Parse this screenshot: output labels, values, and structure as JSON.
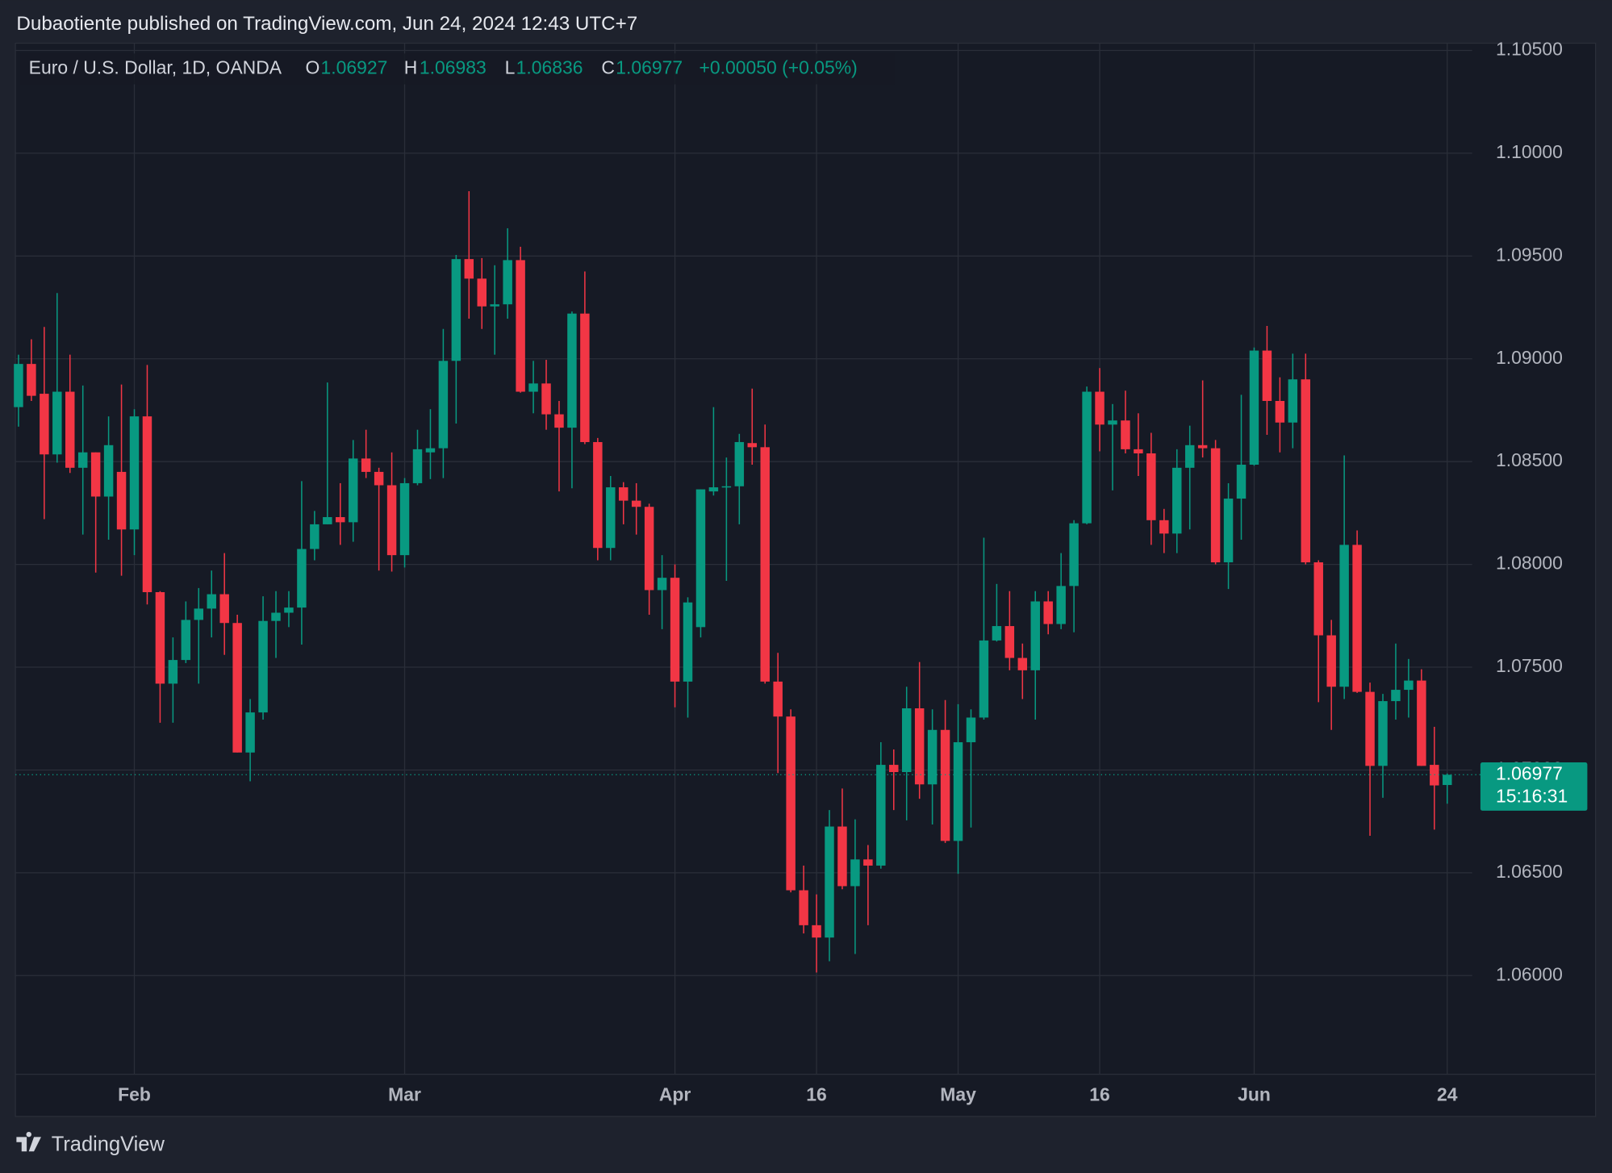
{
  "published": "Dubaotiente published on TradingView.com, Jun 24, 2024 12:43 UTC+7",
  "footer": {
    "brand": "TradingView"
  },
  "chart_data": {
    "type": "candlestick",
    "symbol": "Euro / U.S. Dollar, 1D, OANDA",
    "ohlc_labels": [
      "O",
      "H",
      "L",
      "C"
    ],
    "change": "+0.00050 (+0.05%)",
    "countdown": "15:16:31",
    "up_color": "#089981",
    "down_color": "#f23645",
    "grid": true,
    "categories": [
      null,
      null,
      null,
      null,
      null,
      null,
      null,
      null,
      null,
      "Feb",
      null,
      null,
      null,
      null,
      null,
      null,
      null,
      null,
      null,
      null,
      null,
      null,
      null,
      null,
      null,
      null,
      null,
      null,
      null,
      null,
      "Mar",
      null,
      null,
      null,
      null,
      null,
      null,
      null,
      null,
      null,
      null,
      null,
      null,
      null,
      null,
      null,
      null,
      null,
      null,
      null,
      null,
      "Apr",
      null,
      null,
      null,
      null,
      null,
      null,
      null,
      null,
      null,
      null,
      "16",
      null,
      null,
      null,
      null,
      null,
      null,
      null,
      null,
      null,
      null,
      "May",
      null,
      null,
      null,
      null,
      null,
      null,
      null,
      null,
      null,
      null,
      "16",
      null,
      null,
      null,
      null,
      null,
      null,
      null,
      null,
      null,
      null,
      null,
      "Jun",
      null,
      null,
      null,
      null,
      null,
      null,
      null,
      null,
      null,
      null,
      null,
      null,
      null,
      null,
      "24"
    ],
    "open": [
      1.08765,
      1.08975,
      1.0883,
      1.08535,
      1.0884,
      1.0847,
      1.08545,
      1.0833,
      1.0845,
      1.0817,
      1.0872,
      1.07865,
      1.0742,
      1.07535,
      1.0773,
      1.07785,
      1.07855,
      1.07715,
      1.07085,
      1.0728,
      1.07725,
      1.07765,
      1.0779,
      1.08075,
      1.08195,
      1.0823,
      1.08205,
      1.08515,
      1.0845,
      1.08385,
      1.08045,
      1.08395,
      1.08545,
      1.08565,
      1.0899,
      1.09485,
      1.0939,
      1.09255,
      1.09265,
      1.0948,
      1.0884,
      1.0888,
      1.0873,
      1.08665,
      1.0922,
      1.08595,
      1.0808,
      1.08375,
      1.0831,
      1.0828,
      1.07875,
      1.07935,
      1.0743,
      1.07695,
      1.08355,
      1.08375,
      1.0838,
      1.0859,
      1.0857,
      1.0743,
      1.0726,
      1.06415,
      1.06245,
      1.06185,
      1.06725,
      1.06435,
      1.06565,
      1.06535,
      1.07025,
      1.0699,
      1.073,
      1.0693,
      1.07195,
      1.06655,
      1.07135,
      1.07255,
      1.0763,
      1.077,
      1.07545,
      1.07485,
      1.0782,
      1.0771,
      1.07895,
      1.082,
      1.0884,
      1.0868,
      1.087,
      1.0856,
      1.0854,
      1.08215,
      1.0815,
      1.0847,
      1.0858,
      1.08565,
      1.0801,
      1.0832,
      1.08485,
      1.0904,
      1.08795,
      1.0869,
      1.089,
      1.0801,
      1.07655,
      1.07405,
      1.08095,
      1.0738,
      1.0702,
      1.07335,
      1.0739,
      1.07435,
      1.07025,
      1.06927
    ],
    "high": [
      1.0902,
      1.09095,
      1.09155,
      1.0932,
      1.0902,
      1.0887,
      1.08545,
      1.0872,
      1.08875,
      1.08755,
      1.0897,
      1.0787,
      1.07645,
      1.0782,
      1.07885,
      1.0797,
      1.08055,
      1.07755,
      1.07345,
      1.07845,
      1.0787,
      1.0787,
      1.08405,
      1.0826,
      1.08885,
      1.08395,
      1.08605,
      1.08655,
      1.0847,
      1.08545,
      1.0842,
      1.08655,
      1.08755,
      1.09145,
      1.09505,
      1.09815,
      1.0949,
      1.09455,
      1.09635,
      1.09545,
      1.0899,
      1.08995,
      1.08795,
      1.0923,
      1.09425,
      1.08615,
      1.0843,
      1.084,
      1.08395,
      1.08295,
      1.08045,
      1.08,
      1.0784,
      1.08365,
      1.08765,
      1.0852,
      1.08635,
      1.08855,
      1.0868,
      1.0757,
      1.07295,
      1.06535,
      1.06395,
      1.06805,
      1.0691,
      1.0676,
      1.06635,
      1.07135,
      1.071,
      1.07405,
      1.07525,
      1.07295,
      1.0734,
      1.0732,
      1.07295,
      1.0813,
      1.07905,
      1.0787,
      1.07615,
      1.0787,
      1.0787,
      1.08055,
      1.08215,
      1.08865,
      1.08955,
      1.0878,
      1.08845,
      1.08735,
      1.0864,
      1.0827,
      1.0856,
      1.08675,
      1.08895,
      1.08605,
      1.08395,
      1.08825,
      1.09055,
      1.0916,
      1.0891,
      1.09025,
      1.09025,
      1.0802,
      1.0773,
      1.0853,
      1.08165,
      1.07425,
      1.0737,
      1.07615,
      1.0754,
      1.0749,
      1.0721,
      1.06983
    ],
    "low": [
      1.0867,
      1.08795,
      1.0822,
      1.08495,
      1.08445,
      1.08145,
      1.0796,
      1.0812,
      1.07945,
      1.08045,
      1.07805,
      1.0723,
      1.0723,
      1.0752,
      1.0742,
      1.07645,
      1.0756,
      1.07085,
      1.06945,
      1.07245,
      1.07545,
      1.07695,
      1.0761,
      1.0802,
      1.08195,
      1.08095,
      1.0811,
      1.0842,
      1.0797,
      1.07965,
      1.07985,
      1.08385,
      1.08415,
      1.0842,
      1.08685,
      1.09195,
      1.09145,
      1.0902,
      1.09195,
      1.08835,
      1.08735,
      1.08655,
      1.08355,
      1.0837,
      1.08585,
      1.0802,
      1.0802,
      1.08195,
      1.08145,
      1.07755,
      1.07685,
      1.07305,
      1.07255,
      1.07645,
      1.08335,
      1.0792,
      1.08195,
      1.08485,
      1.0742,
      1.06985,
      1.06405,
      1.06205,
      1.06015,
      1.0607,
      1.0642,
      1.06105,
      1.06245,
      1.0652,
      1.06805,
      1.06755,
      1.0686,
      1.06735,
      1.06645,
      1.06495,
      1.0672,
      1.07245,
      1.07625,
      1.07485,
      1.07345,
      1.07245,
      1.0766,
      1.07685,
      1.0767,
      1.08195,
      1.0855,
      1.0836,
      1.0854,
      1.0843,
      1.08095,
      1.08055,
      1.08055,
      1.0817,
      1.0852,
      1.08,
      1.0788,
      1.0812,
      1.0848,
      1.0863,
      1.08545,
      1.08565,
      1.08,
      1.0733,
      1.07195,
      1.07345,
      1.07375,
      1.0668,
      1.06865,
      1.07245,
      1.07255,
      1.0702,
      1.0671,
      1.06836
    ],
    "close": [
      1.08975,
      1.0882,
      1.08535,
      1.0884,
      1.0847,
      1.08545,
      1.0833,
      1.0858,
      1.0817,
      1.0872,
      1.07865,
      1.0742,
      1.07535,
      1.0773,
      1.07785,
      1.07855,
      1.07715,
      1.07085,
      1.0728,
      1.07725,
      1.07765,
      1.0779,
      1.08075,
      1.08195,
      1.0823,
      1.08205,
      1.08515,
      1.0845,
      1.08385,
      1.08045,
      1.08395,
      1.0856,
      1.08565,
      1.0899,
      1.09485,
      1.0939,
      1.09255,
      1.09265,
      1.0948,
      1.0884,
      1.0888,
      1.0873,
      1.08665,
      1.0922,
      1.08595,
      1.0808,
      1.08375,
      1.0831,
      1.0828,
      1.07875,
      1.07935,
      1.0743,
      1.07815,
      1.08365,
      1.08375,
      1.0838,
      1.08595,
      1.0857,
      1.0743,
      1.0726,
      1.06415,
      1.06245,
      1.06185,
      1.06725,
      1.06435,
      1.06565,
      1.06535,
      1.07025,
      1.0699,
      1.073,
      1.0693,
      1.07195,
      1.06655,
      1.07135,
      1.07255,
      1.0763,
      1.077,
      1.07545,
      1.07485,
      1.0782,
      1.0771,
      1.07895,
      1.082,
      1.0884,
      1.0868,
      1.087,
      1.0856,
      1.0854,
      1.08215,
      1.0815,
      1.0847,
      1.0858,
      1.08565,
      1.0801,
      1.0832,
      1.08485,
      1.0904,
      1.08795,
      1.0869,
      1.089,
      1.0801,
      1.07655,
      1.07405,
      1.08095,
      1.0738,
      1.0702,
      1.07335,
      1.0739,
      1.07435,
      1.0702,
      1.06925,
      1.06977
    ],
    "ylim": [
      1.0552,
      1.10535
    ],
    "yticks": [
      {
        "value": 1.06,
        "label": "1.06000"
      },
      {
        "value": 1.065,
        "label": "1.06500"
      },
      {
        "value": 1.07,
        "label": "1.07000"
      },
      {
        "value": 1.075,
        "label": "1.07500"
      },
      {
        "value": 1.08,
        "label": "1.08000"
      },
      {
        "value": 1.085,
        "label": "1.08500"
      },
      {
        "value": 1.09,
        "label": "1.09000"
      },
      {
        "value": 1.095,
        "label": "1.09500"
      },
      {
        "value": 1.1,
        "label": "1.10000"
      },
      {
        "value": 1.105,
        "label": "1.10500"
      }
    ]
  }
}
